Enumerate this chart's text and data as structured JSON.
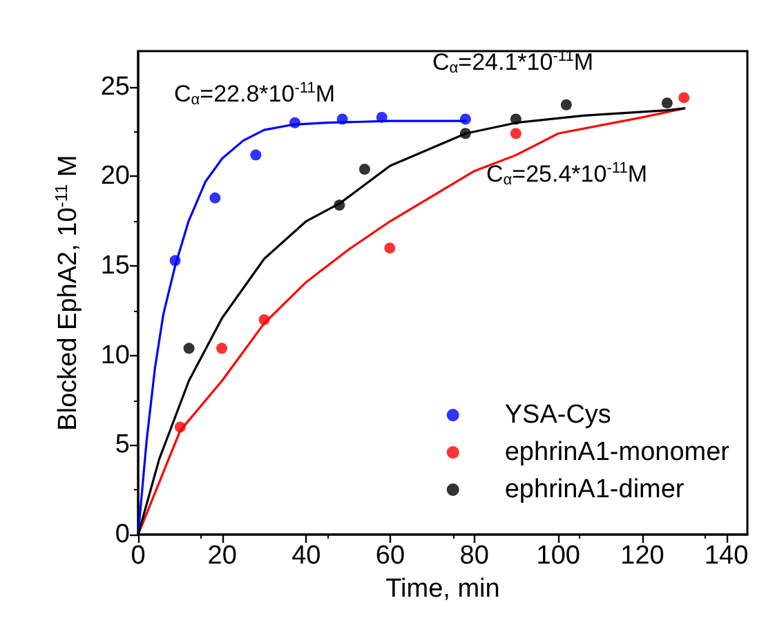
{
  "chart_data": {
    "type": "scatter",
    "xlabel": "Time, min",
    "ylabel": "Blocked EphA2, 10$^{-11}$ M",
    "xlim": [
      0,
      145
    ],
    "xticks": [
      0,
      20,
      40,
      60,
      80,
      100,
      120,
      140
    ],
    "ylim": [
      0,
      27
    ],
    "yticks": [
      0,
      5,
      10,
      15,
      20,
      25
    ],
    "grid": false,
    "legend": "bottom right",
    "marker": "circle",
    "series": [
      {
        "name": "YSA-Cys",
        "color": "#0000ff",
        "x": [
          8.8,
          18.3,
          28.0,
          37.3,
          48.6,
          58.0,
          77.9
        ],
        "values": [
          15.3,
          18.8,
          21.2,
          23.0,
          23.2,
          23.3,
          23.2
        ]
      },
      {
        "name": "ephrinA1-monomer",
        "color": "#ff0000",
        "x": [
          10.0,
          19.9,
          30.0,
          59.9,
          89.9,
          129.9
        ],
        "values": [
          6.0,
          10.4,
          12.0,
          16.0,
          22.4,
          24.4
        ]
      },
      {
        "name": "ephrinA1-dimer",
        "color": "#000000",
        "x": [
          12.1,
          47.9,
          53.9,
          77.9,
          89.9,
          101.9,
          125.9
        ],
        "values": [
          10.4,
          18.4,
          20.4,
          22.4,
          23.2,
          24.0,
          24.1
        ]
      },
      {
        "type": "line",
        "color": "#0000ff",
        "marker": "none",
        "x": [
          0,
          2,
          4,
          6,
          8.8,
          12,
          16,
          20,
          25,
          30,
          37,
          45,
          60,
          78
        ],
        "values": [
          0,
          5.2,
          9.3,
          12.3,
          15.0,
          17.5,
          19.7,
          21.0,
          22.0,
          22.6,
          22.9,
          23.0,
          23.1,
          23.1
        ]
      },
      {
        "type": "line",
        "color": "#ff0000",
        "marker": "none",
        "x": [
          0,
          10,
          20,
          30,
          40,
          50,
          60,
          80,
          90,
          100,
          120,
          130
        ],
        "values": [
          0,
          5.8,
          8.6,
          11.8,
          14.1,
          15.9,
          17.5,
          20.3,
          21.2,
          22.4,
          23.3,
          23.8
        ]
      },
      {
        "type": "line",
        "color": "#000000",
        "marker": "none",
        "x": [
          0,
          5,
          12.1,
          20,
          30,
          40,
          48,
          60,
          78,
          90,
          106,
          126,
          130
        ],
        "values": [
          0,
          4.2,
          8.6,
          12.1,
          15.4,
          17.5,
          18.5,
          20.6,
          22.4,
          23.0,
          23.4,
          23.7,
          23.8
        ]
      }
    ],
    "annotations": [
      "C$_{α}$=22.8*10$^{-11}$M",
      "C$_{α}$=24.1*10$^{-11}$M",
      "C$_{α}$=25.4*10$^{-11}$M"
    ]
  }
}
